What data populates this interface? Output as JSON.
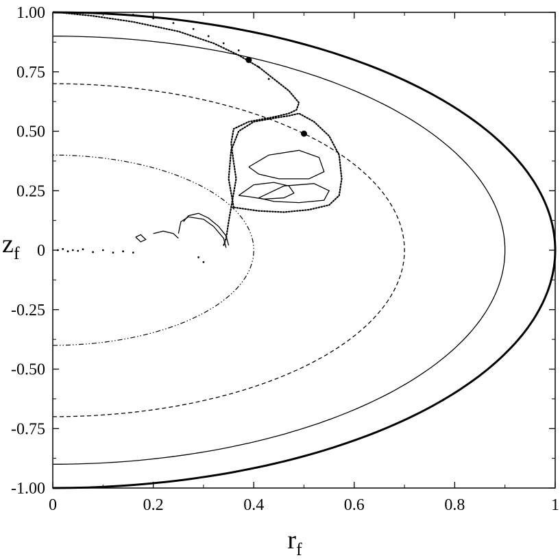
{
  "chart_data": {
    "type": "line",
    "title": "",
    "xlabel": {
      "main": "r",
      "sub": "f"
    },
    "ylabel": {
      "main": "z",
      "sub": "f"
    },
    "xlim": [
      0,
      1
    ],
    "ylim": [
      -1,
      1
    ],
    "grid": false,
    "x_ticks": [
      {
        "value": 0,
        "label": "0"
      },
      {
        "value": 0.2,
        "label": "0.2"
      },
      {
        "value": 0.4,
        "label": "0.4"
      },
      {
        "value": 0.6,
        "label": "0.6"
      },
      {
        "value": 0.8,
        "label": "0.8"
      },
      {
        "value": 1,
        "label": "1"
      }
    ],
    "y_ticks": [
      {
        "value": 1,
        "label": "1.00"
      },
      {
        "value": 0.75,
        "label": "0.75"
      },
      {
        "value": 0.5,
        "label": "0.50"
      },
      {
        "value": 0.25,
        "label": "0.25"
      },
      {
        "value": 0,
        "label": "0"
      },
      {
        "value": -0.25,
        "label": "-0.25"
      },
      {
        "value": -0.5,
        "label": "-0.50"
      },
      {
        "value": -0.75,
        "label": "-0.75"
      },
      {
        "value": -1,
        "label": "-1.00"
      }
    ],
    "boundary_curves": [
      {
        "radius": 1.0,
        "style": "solid-thick",
        "color": "#000000"
      },
      {
        "radius": 0.9,
        "style": "solid",
        "color": "#000000"
      },
      {
        "radius": 0.7,
        "style": "dashed",
        "color": "#000000"
      },
      {
        "radius": 0.4,
        "style": "dash-dot-dot",
        "color": "#000000"
      }
    ],
    "trajectory": {
      "style": "dotted",
      "color": "#000000",
      "points": [
        [
          0.01,
          1.0
        ],
        [
          0.08,
          0.985
        ],
        [
          0.16,
          0.96
        ],
        [
          0.25,
          0.92
        ],
        [
          0.32,
          0.87
        ],
        [
          0.37,
          0.82
        ],
        [
          0.41,
          0.77
        ],
        [
          0.44,
          0.72
        ],
        [
          0.47,
          0.67
        ],
        [
          0.49,
          0.62
        ],
        [
          0.485,
          0.59
        ],
        [
          0.47,
          0.575
        ],
        [
          0.44,
          0.56
        ],
        [
          0.39,
          0.54
        ],
        [
          0.36,
          0.51
        ],
        [
          0.355,
          0.45
        ],
        [
          0.36,
          0.37
        ],
        [
          0.365,
          0.3
        ],
        [
          0.36,
          0.24
        ],
        [
          0.355,
          0.18
        ],
        [
          0.35,
          0.12
        ],
        [
          0.345,
          0.05
        ],
        [
          0.34,
          0.02
        ]
      ]
    },
    "lobe": {
      "style": "dotted",
      "color": "#000000",
      "points": [
        [
          0.36,
          0.18
        ],
        [
          0.35,
          0.3
        ],
        [
          0.355,
          0.42
        ],
        [
          0.37,
          0.5
        ],
        [
          0.4,
          0.54
        ],
        [
          0.44,
          0.555
        ],
        [
          0.47,
          0.565
        ],
        [
          0.49,
          0.575
        ],
        [
          0.52,
          0.54
        ],
        [
          0.55,
          0.48
        ],
        [
          0.57,
          0.4
        ],
        [
          0.575,
          0.3
        ],
        [
          0.57,
          0.23
        ],
        [
          0.55,
          0.19
        ],
        [
          0.51,
          0.17
        ],
        [
          0.46,
          0.16
        ],
        [
          0.41,
          0.165
        ],
        [
          0.36,
          0.18
        ]
      ]
    },
    "inner_loops": [
      {
        "style": "solid",
        "color": "#000000",
        "points": [
          [
            0.37,
            0.23
          ],
          [
            0.4,
            0.275
          ],
          [
            0.44,
            0.285
          ],
          [
            0.47,
            0.27
          ],
          [
            0.48,
            0.24
          ],
          [
            0.46,
            0.22
          ],
          [
            0.42,
            0.215
          ],
          [
            0.39,
            0.225
          ],
          [
            0.37,
            0.23
          ]
        ]
      },
      {
        "style": "solid",
        "color": "#000000",
        "points": [
          [
            0.41,
            0.22
          ],
          [
            0.46,
            0.27
          ],
          [
            0.52,
            0.28
          ],
          [
            0.55,
            0.25
          ],
          [
            0.54,
            0.21
          ],
          [
            0.49,
            0.2
          ],
          [
            0.44,
            0.205
          ],
          [
            0.41,
            0.22
          ]
        ]
      },
      {
        "style": "solid",
        "color": "#000000",
        "points": [
          [
            0.39,
            0.35
          ],
          [
            0.43,
            0.4
          ],
          [
            0.49,
            0.42
          ],
          [
            0.53,
            0.39
          ],
          [
            0.54,
            0.33
          ],
          [
            0.51,
            0.3
          ],
          [
            0.45,
            0.3
          ],
          [
            0.41,
            0.32
          ],
          [
            0.39,
            0.35
          ]
        ]
      }
    ],
    "tails": [
      {
        "style": "solid",
        "color": "#000000",
        "points": [
          [
            0.26,
            0.12
          ],
          [
            0.27,
            0.145
          ],
          [
            0.29,
            0.155
          ],
          [
            0.31,
            0.135
          ],
          [
            0.33,
            0.1
          ],
          [
            0.345,
            0.06
          ],
          [
            0.35,
            0.02
          ]
        ]
      },
      {
        "style": "solid",
        "color": "#000000",
        "points": [
          [
            0.25,
            0.07
          ],
          [
            0.255,
            0.12
          ],
          [
            0.27,
            0.14
          ],
          [
            0.3,
            0.13
          ],
          [
            0.32,
            0.1
          ],
          [
            0.34,
            0.05
          ],
          [
            0.345,
            0.01
          ]
        ]
      },
      {
        "style": "solid",
        "color": "#000000",
        "points": [
          [
            0.2,
            0.07
          ],
          [
            0.22,
            0.08
          ],
          [
            0.24,
            0.07
          ],
          [
            0.25,
            0.05
          ]
        ]
      },
      {
        "style": "solid",
        "color": "#000000",
        "points": [
          [
            0.165,
            0.055
          ],
          [
            0.175,
            0.065
          ],
          [
            0.185,
            0.045
          ],
          [
            0.175,
            0.035
          ],
          [
            0.165,
            0.055
          ]
        ]
      }
    ],
    "scatter_clusters": [
      {
        "style": "dots",
        "color": "#000000",
        "points": [
          [
            0.01,
            0.0
          ],
          [
            0.02,
            0.005
          ],
          [
            0.03,
            -0.005
          ],
          [
            0.04,
            0.0
          ],
          [
            0.05,
            -0.003
          ],
          [
            0.06,
            0.004
          ],
          [
            0.08,
            -0.008
          ],
          [
            0.1,
            0.0
          ],
          [
            0.12,
            -0.01
          ],
          [
            0.14,
            -0.005
          ],
          [
            0.16,
            -0.01
          ],
          [
            0.29,
            -0.03
          ],
          [
            0.3,
            -0.05
          ]
        ]
      },
      {
        "style": "dots",
        "color": "#000000",
        "points": [
          [
            0.16,
            0.99
          ],
          [
            0.2,
            0.975
          ],
          [
            0.24,
            0.955
          ],
          [
            0.28,
            0.93
          ],
          [
            0.31,
            0.9
          ],
          [
            0.34,
            0.87
          ],
          [
            0.37,
            0.84
          ],
          [
            0.39,
            0.8
          ],
          [
            0.41,
            0.77
          ],
          [
            0.43,
            0.72
          ]
        ]
      }
    ],
    "markers": [
      {
        "x": 0.39,
        "y": 0.8,
        "shape": "filled-circle"
      },
      {
        "x": 0.5,
        "y": 0.49,
        "shape": "filled-circle"
      }
    ]
  }
}
